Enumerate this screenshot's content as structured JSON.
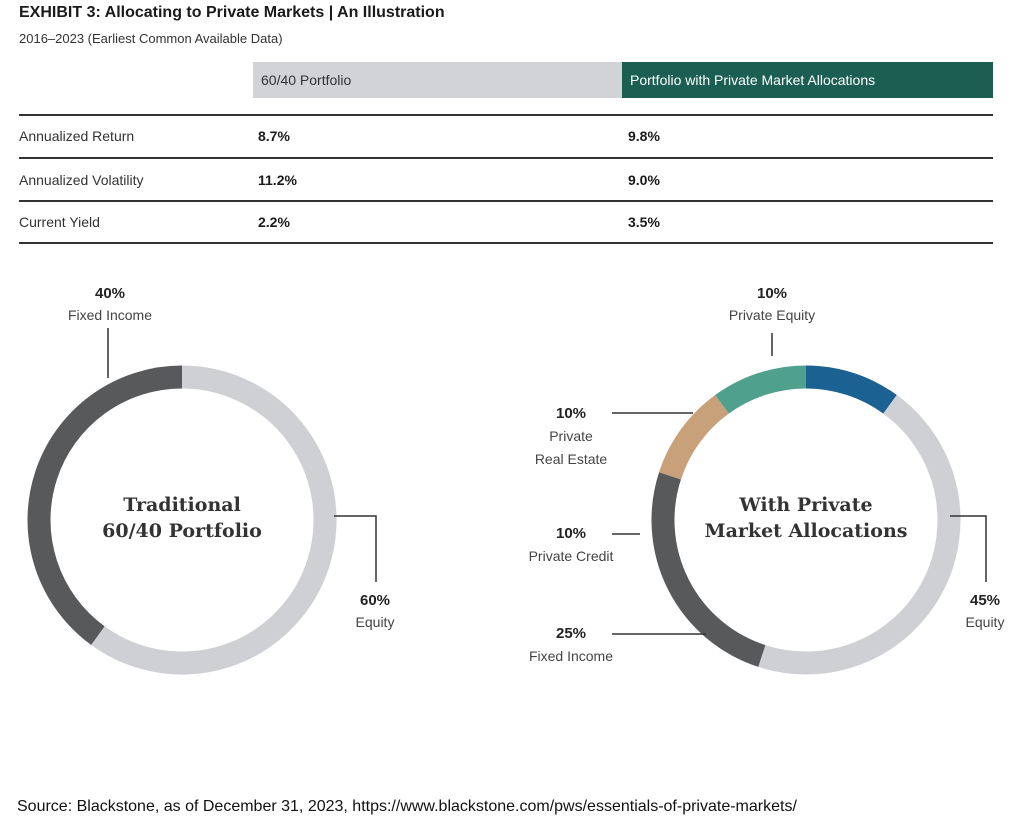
{
  "header": {
    "title": "EXHIBIT 3: Allocating to Private Markets | An Illustration",
    "subtitle": "2016–2023 (Earliest Common Available Data)"
  },
  "chart_data": [
    {
      "type": "table",
      "columns": [
        "60/40 Portfolio",
        "Portfolio with Private Market Allocations"
      ],
      "rows": [
        {
          "label": "Annualized Return",
          "values": [
            "8.7%",
            "9.8%"
          ]
        },
        {
          "label": "Annualized Volatility",
          "values": [
            "11.2%",
            "9.0%"
          ]
        },
        {
          "label": "Current Yield",
          "values": [
            "2.2%",
            "3.5%"
          ]
        }
      ]
    },
    {
      "type": "pie",
      "center_label": [
        "Traditional",
        "60/40 Portfolio"
      ],
      "slices": [
        {
          "name": "Fixed Income",
          "value": 40,
          "pct_label": "40%",
          "color": "#58595b"
        },
        {
          "name": "Equity",
          "value": 60,
          "pct_label": "60%",
          "color": "#cfd0d4"
        }
      ]
    },
    {
      "type": "pie",
      "center_label": [
        "With Private",
        "Market Allocations"
      ],
      "slices": [
        {
          "name": "Private Equity",
          "value": 10,
          "pct_label": "10%",
          "color": "#1b6191"
        },
        {
          "name": "Equity",
          "value": 45,
          "pct_label": "45%",
          "color": "#cfd0d4"
        },
        {
          "name": "Fixed Income",
          "value": 25,
          "pct_label": "25%",
          "color": "#58595b"
        },
        {
          "name": "Private Credit",
          "value": 10,
          "pct_label": "10%",
          "color": "#c8a07a"
        },
        {
          "name": "Private Real Estate",
          "value": 10,
          "pct_label": "10%",
          "color": "#4fa18e"
        }
      ]
    }
  ],
  "labels": {
    "pe_line1": "Private",
    "pe_line2": "Real Estate"
  },
  "source": "Source: Blackstone,  as of December 31, 2023, https://www.blackstone.com/pws/essentials-of-private-markets/"
}
